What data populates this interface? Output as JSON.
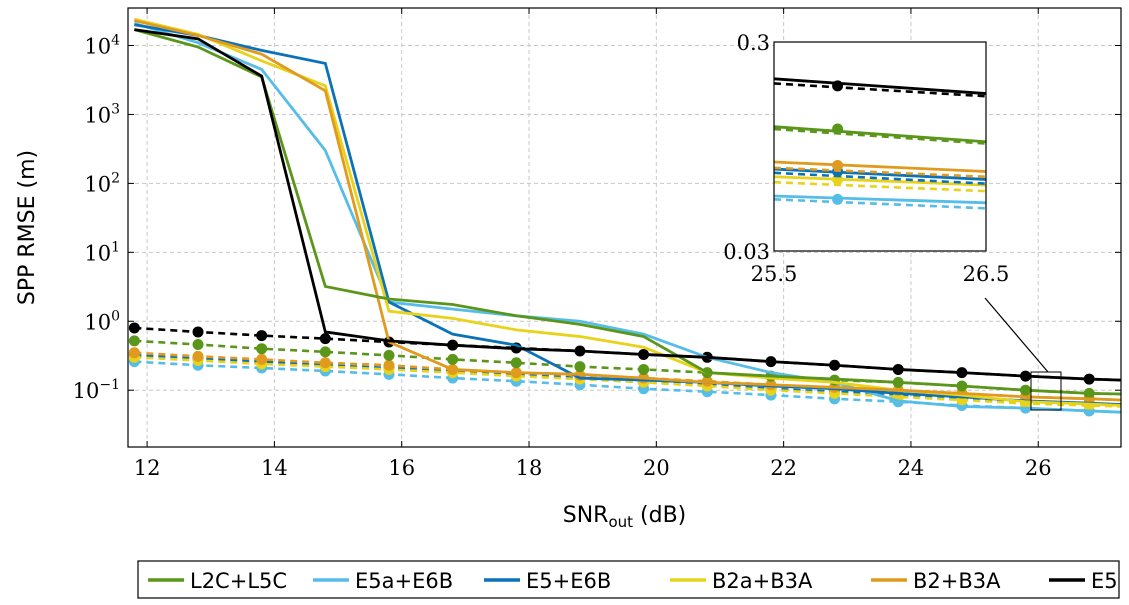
{
  "chart_data": {
    "type": "line",
    "xlabel": {
      "main": "SNR",
      "sub": "out",
      "unit": " (dB)"
    },
    "ylabel": "SPP RMSE (m)",
    "x_ticks": [
      "12",
      "14",
      "16",
      "18",
      "20",
      "22",
      "24",
      "26"
    ],
    "y_ticks": [
      {
        "base": "10",
        "exp": "4"
      },
      {
        "base": "10",
        "exp": "3"
      },
      {
        "base": "10",
        "exp": "2"
      },
      {
        "base": "10",
        "exp": "1"
      },
      {
        "base": "10",
        "exp": "0"
      },
      {
        "base": "10",
        "exp": "−1"
      }
    ],
    "xlim": [
      11.7,
      27.3
    ],
    "ylim": [
      0.015,
      35000
    ],
    "yscale": "log",
    "grid": true,
    "legend_position": "bottom",
    "x": [
      11.8,
      12.8,
      13.8,
      14.8,
      15.8,
      16.8,
      17.8,
      18.8,
      19.8,
      20.8,
      21.8,
      22.8,
      23.8,
      24.8,
      25.8,
      26.8,
      27.3
    ],
    "series": [
      {
        "name": "L2C+L5C",
        "color": "#5a9619",
        "solid": [
          17000,
          9500,
          3500,
          3.2,
          2.1,
          1.75,
          1.2,
          0.9,
          0.6,
          0.18,
          0.16,
          0.145,
          0.13,
          0.115,
          0.1,
          0.09,
          0.088
        ],
        "dashed": [
          0.52,
          0.46,
          0.4,
          0.36,
          0.32,
          0.28,
          0.25,
          0.22,
          0.2,
          0.18,
          0.16,
          0.14,
          0.13,
          0.115,
          0.1,
          0.09,
          0.088
        ]
      },
      {
        "name": "E5a+E6B",
        "color": "#56bde8",
        "solid": [
          21000,
          11000,
          4500,
          300,
          1.9,
          1.5,
          1.2,
          1.0,
          0.65,
          0.3,
          0.18,
          0.13,
          0.07,
          0.058,
          0.055,
          0.05,
          0.048
        ],
        "dashed": [
          0.26,
          0.23,
          0.21,
          0.19,
          0.17,
          0.15,
          0.135,
          0.12,
          0.105,
          0.095,
          0.085,
          0.075,
          0.068,
          0.06,
          0.055,
          0.05,
          0.048
        ]
      },
      {
        "name": "E5+E6B",
        "color": "#0c72b8",
        "solid": [
          20000,
          14000,
          8500,
          5500,
          1.9,
          0.65,
          0.45,
          0.15,
          0.14,
          0.13,
          0.115,
          0.105,
          0.09,
          0.08,
          0.07,
          0.065,
          0.062
        ],
        "dashed": [
          0.32,
          0.29,
          0.26,
          0.23,
          0.21,
          0.19,
          0.17,
          0.15,
          0.13,
          0.12,
          0.105,
          0.095,
          0.085,
          0.075,
          0.068,
          0.064,
          0.062
        ]
      },
      {
        "name": "B2a+B3A",
        "color": "#e8d31a",
        "solid": [
          24000,
          14500,
          6000,
          2600,
          1.4,
          1.1,
          0.75,
          0.6,
          0.42,
          0.18,
          0.15,
          0.13,
          0.1,
          0.085,
          0.068,
          0.063,
          0.06
        ],
        "dashed": [
          0.3,
          0.27,
          0.24,
          0.22,
          0.2,
          0.18,
          0.16,
          0.145,
          0.13,
          0.115,
          0.1,
          0.09,
          0.08,
          0.072,
          0.064,
          0.06,
          0.058
        ]
      },
      {
        "name": "B2+B3A",
        "color": "#e09a1e",
        "solid": [
          23000,
          14000,
          7500,
          2200,
          0.5,
          0.2,
          0.18,
          0.17,
          0.15,
          0.13,
          0.12,
          0.11,
          0.1,
          0.09,
          0.08,
          0.075,
          0.072
        ],
        "dashed": [
          0.35,
          0.31,
          0.28,
          0.25,
          0.23,
          0.2,
          0.18,
          0.165,
          0.15,
          0.135,
          0.12,
          0.11,
          0.1,
          0.09,
          0.08,
          0.075,
          0.072
        ]
      },
      {
        "name": "E5",
        "color": "#000000",
        "solid": [
          17000,
          12500,
          3600,
          0.7,
          0.52,
          0.45,
          0.4,
          0.37,
          0.33,
          0.3,
          0.26,
          0.23,
          0.2,
          0.18,
          0.16,
          0.145,
          0.14
        ],
        "dashed": [
          0.8,
          0.7,
          0.62,
          0.56,
          0.5,
          0.45,
          0.41,
          0.37,
          0.33,
          0.3,
          0.26,
          0.23,
          0.2,
          0.18,
          0.16,
          0.145,
          0.14
        ]
      }
    ],
    "inset": {
      "x_ticks": [
        "25.5",
        "26.5"
      ],
      "y_ticks": [
        "0.3",
        "0.03"
      ],
      "xlim": [
        25.5,
        26.5
      ],
      "ylim": [
        0.03,
        0.3
      ],
      "marker_x": 25.8,
      "series": [
        {
          "name": "E5",
          "solid": [
            0.2,
            0.17
          ],
          "dashed": [
            0.19,
            0.165
          ],
          "marker": 0.185
        },
        {
          "name": "L2C+L5C",
          "solid": [
            0.118,
            0.1
          ],
          "dashed": [
            0.115,
            0.098
          ],
          "marker": 0.115
        },
        {
          "name": "B2+B3A",
          "solid": [
            0.08,
            0.072
          ],
          "dashed": [
            0.075,
            0.068
          ],
          "marker": 0.077
        },
        {
          "name": "E5+E6B",
          "solid": [
            0.074,
            0.066
          ],
          "dashed": [
            0.071,
            0.063
          ],
          "marker": 0.072
        },
        {
          "name": "B2a+B3A",
          "solid": [
            0.068,
            0.062
          ],
          "dashed": [
            0.064,
            0.058
          ],
          "marker": 0.066
        },
        {
          "name": "E5a+E6B",
          "solid": [
            0.055,
            0.051
          ],
          "dashed": [
            0.053,
            0.048
          ],
          "marker": 0.053
        }
      ]
    }
  }
}
